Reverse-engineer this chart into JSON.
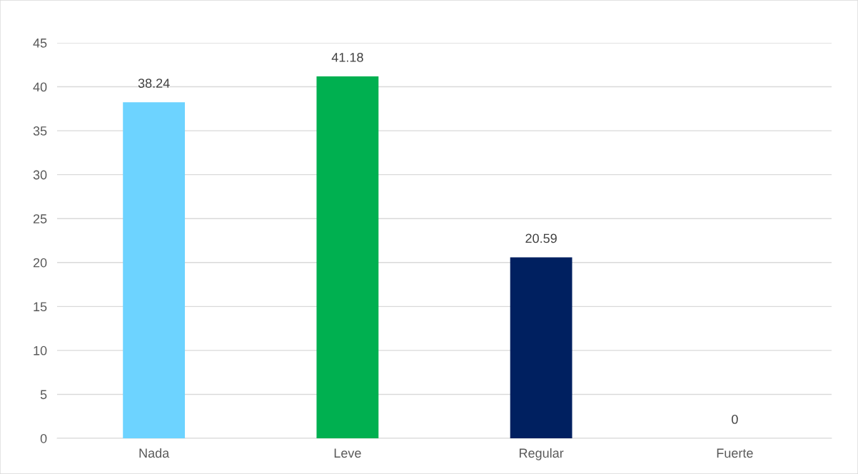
{
  "chart_data": {
    "type": "bar",
    "categories": [
      "Nada",
      "Leve",
      "Regular",
      "Fuerte"
    ],
    "values": [
      38.24,
      41.18,
      20.59,
      0
    ],
    "colors": [
      "#6dd3ff",
      "#00b050",
      "#002060",
      "#7f7f7f"
    ],
    "ylim": [
      0,
      45
    ],
    "yticks": [
      0,
      5,
      10,
      15,
      20,
      25,
      30,
      35,
      40,
      45
    ],
    "grid": "y",
    "data_labels": true
  }
}
